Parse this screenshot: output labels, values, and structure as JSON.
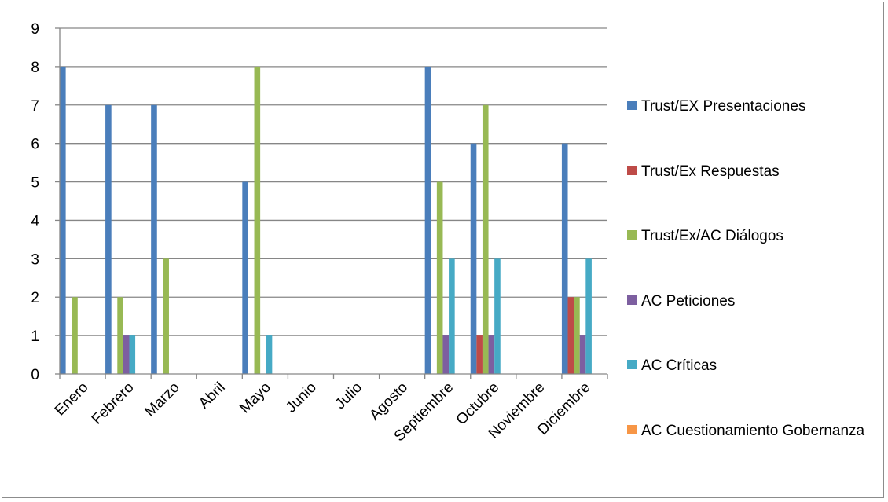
{
  "chart_data": {
    "type": "bar",
    "categories": [
      "Enero",
      "Febrero",
      "Marzo",
      "Abril",
      "Mayo",
      "Junio",
      "Julio",
      "Agosto",
      "Septiembre",
      "Octubre",
      "Noviembre",
      "Diciembre"
    ],
    "series": [
      {
        "name": "Trust/EX Presentaciones",
        "color": "#4a7ebb",
        "values": [
          8,
          7,
          7,
          0,
          5,
          0,
          0,
          0,
          8,
          6,
          0,
          6
        ]
      },
      {
        "name": "Trust/Ex Respuestas",
        "color": "#be4b48",
        "values": [
          0,
          0,
          0,
          0,
          0,
          0,
          0,
          0,
          0,
          1,
          0,
          2
        ]
      },
      {
        "name": "Trust/Ex/AC Diálogos",
        "color": "#98b954",
        "values": [
          2,
          2,
          3,
          0,
          8,
          0,
          0,
          0,
          5,
          7,
          0,
          2
        ]
      },
      {
        "name": "AC Peticiones",
        "color": "#7d5fa0",
        "values": [
          0,
          1,
          0,
          0,
          0,
          0,
          0,
          0,
          1,
          1,
          0,
          1
        ]
      },
      {
        "name": "AC Críticas",
        "color": "#46aac5",
        "values": [
          0,
          1,
          0,
          0,
          1,
          0,
          0,
          0,
          3,
          3,
          0,
          3
        ]
      },
      {
        "name": "AC Cuestionamiento Gobernanza",
        "color": "#f79646",
        "values": [
          0,
          0,
          0,
          0,
          0,
          0,
          0,
          0,
          0,
          0,
          0,
          0
        ]
      }
    ],
    "yticks": [
      "0",
      "1",
      "2",
      "3",
      "4",
      "5",
      "6",
      "7",
      "8",
      "9"
    ],
    "ylim": [
      0,
      9
    ],
    "grid": true,
    "legend_position": "right"
  }
}
